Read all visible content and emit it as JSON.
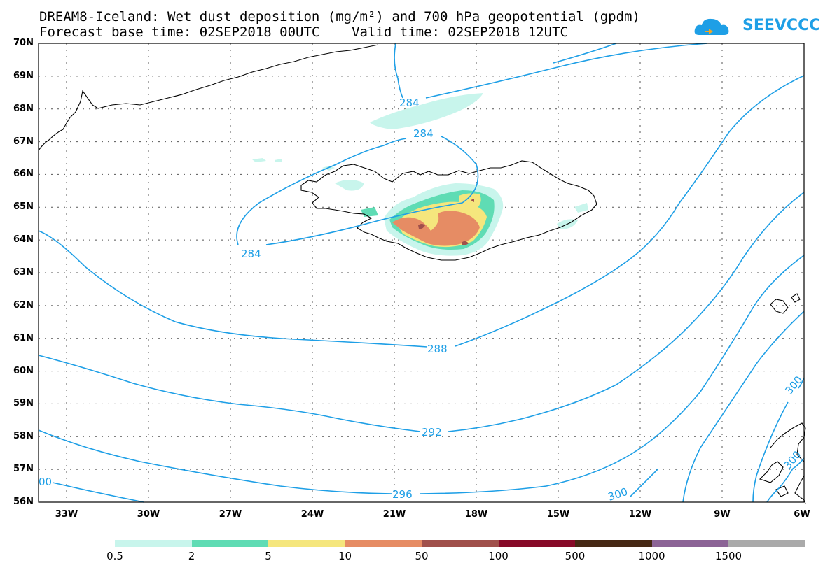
{
  "title_line1": "DREAM8-Iceland: Wet dust deposition (mg/m²) and 700 hPa geopotential (gpdm)",
  "title_line2": "Forecast base time: 02SEP2018 00UTC    Valid time: 02SEP2018 12UTC",
  "logo_text": "SEEVCCC",
  "lat_labels": [
    "70N",
    "69N",
    "68N",
    "67N",
    "66N",
    "65N",
    "64N",
    "63N",
    "62N",
    "61N",
    "60N",
    "59N",
    "58N",
    "57N",
    "56N"
  ],
  "lon_labels": [
    "33W",
    "30W",
    "27W",
    "24W",
    "21W",
    "18W",
    "15W",
    "12W",
    "9W",
    "6W"
  ],
  "contour_labels": [
    "284",
    "284",
    "284",
    "288",
    "292",
    "296",
    "300",
    "300",
    "300"
  ],
  "colorbar": {
    "colors": [
      "#c8f5ec",
      "#5fdcb4",
      "#f5e67d",
      "#e68c64",
      "#a0504b",
      "#870a28",
      "#462814",
      "#8c6496",
      "#aaaaaa"
    ],
    "labels": [
      "0.5",
      "2",
      "5",
      "10",
      "50",
      "100",
      "500",
      "1000",
      "1500"
    ]
  },
  "colors": {
    "contour": "#1e9fe6",
    "coast": "#000000"
  }
}
